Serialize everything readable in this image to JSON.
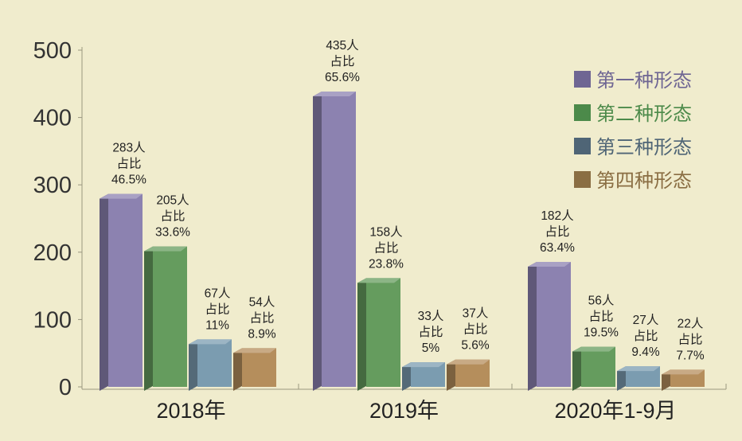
{
  "chart_data": {
    "type": "bar",
    "categories": [
      "2018年",
      "2019年",
      "2020年1-9月"
    ],
    "ylim": [
      0,
      500
    ],
    "yticks": [
      0,
      100,
      200,
      300,
      400,
      500
    ],
    "legend_position": "top-right",
    "series": [
      {
        "name": "第一种形态",
        "color": "#8c82b0",
        "values": [
          283,
          435,
          182
        ],
        "labels": [
          [
            "283人",
            "占比",
            "46.5%"
          ],
          [
            "435人",
            "占比",
            "65.6%"
          ],
          [
            "182人",
            "占比",
            "63.4%"
          ]
        ]
      },
      {
        "name": "第二种形态",
        "color": "#659c5e",
        "values": [
          205,
          158,
          56
        ],
        "labels": [
          [
            "205人",
            "占比",
            "33.6%"
          ],
          [
            "158人",
            "占比",
            "23.8%"
          ],
          [
            "56人",
            "占比",
            "19.5%"
          ]
        ]
      },
      {
        "name": "第三种形态",
        "color": "#7b9cb0",
        "values": [
          67,
          33,
          27
        ],
        "labels": [
          [
            "67人",
            "占比",
            "11%"
          ],
          [
            "33人",
            "占比",
            "5%"
          ],
          [
            "27人",
            "占比",
            "9.4%"
          ]
        ]
      },
      {
        "name": "第四种形态",
        "color": "#b58e5c",
        "values": [
          54,
          37,
          22
        ],
        "labels": [
          [
            "54人",
            "占比",
            "8.9%"
          ],
          [
            "37人",
            "占比",
            "5.6%"
          ],
          [
            "22人",
            "占比",
            "7.7%"
          ]
        ]
      }
    ],
    "legend_marker_colors": [
      "#6f6693",
      "#4c8a4a",
      "#4f6576",
      "#8a6e43"
    ],
    "legend_text_colors": [
      "#6f6693",
      "#4c8a4a",
      "#4f6576",
      "#8a6e43"
    ]
  }
}
